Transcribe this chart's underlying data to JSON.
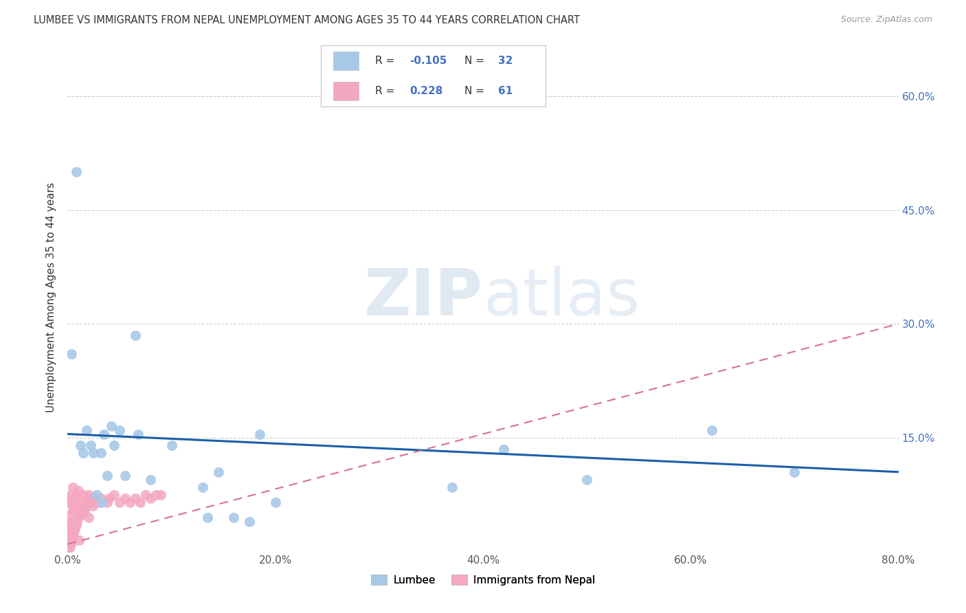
{
  "title": "LUMBEE VS IMMIGRANTS FROM NEPAL UNEMPLOYMENT AMONG AGES 35 TO 44 YEARS CORRELATION CHART",
  "source": "Source: ZipAtlas.com",
  "ylabel": "Unemployment Among Ages 35 to 44 years",
  "xlim": [
    0,
    0.8
  ],
  "ylim": [
    0,
    0.67
  ],
  "lumbee_R": -0.105,
  "lumbee_N": 32,
  "nepal_R": 0.228,
  "nepal_N": 61,
  "lumbee_color": "#a8c8e8",
  "nepal_color": "#f4a8c0",
  "lumbee_line_color": "#1a5fa8",
  "nepal_line_color": "#d87090",
  "background_color": "#ffffff",
  "lumbee_x": [
    0.004,
    0.008,
    0.012,
    0.015,
    0.018,
    0.022,
    0.025,
    0.028,
    0.032,
    0.033,
    0.035,
    0.038,
    0.042,
    0.045,
    0.05,
    0.055,
    0.065,
    0.068,
    0.08,
    0.1,
    0.13,
    0.135,
    0.145,
    0.16,
    0.175,
    0.185,
    0.2,
    0.37,
    0.42,
    0.5,
    0.62,
    0.7
  ],
  "lumbee_y": [
    0.26,
    0.5,
    0.14,
    0.13,
    0.16,
    0.14,
    0.13,
    0.075,
    0.13,
    0.065,
    0.155,
    0.1,
    0.165,
    0.14,
    0.16,
    0.1,
    0.285,
    0.155,
    0.095,
    0.14,
    0.085,
    0.045,
    0.105,
    0.045,
    0.04,
    0.155,
    0.065,
    0.085,
    0.135,
    0.095,
    0.16,
    0.105
  ],
  "nepal_x": [
    0.0,
    0.0,
    0.0,
    0.0,
    0.0,
    0.0,
    0.001,
    0.001,
    0.001,
    0.002,
    0.002,
    0.002,
    0.003,
    0.003,
    0.003,
    0.004,
    0.004,
    0.005,
    0.005,
    0.005,
    0.006,
    0.006,
    0.007,
    0.007,
    0.008,
    0.008,
    0.009,
    0.009,
    0.01,
    0.01,
    0.011,
    0.011,
    0.012,
    0.013,
    0.014,
    0.015,
    0.015,
    0.016,
    0.017,
    0.018,
    0.019,
    0.02,
    0.02,
    0.021,
    0.022,
    0.024,
    0.026,
    0.028,
    0.032,
    0.038,
    0.04,
    0.045,
    0.05,
    0.055,
    0.06,
    0.065,
    0.07,
    0.075,
    0.08,
    0.085,
    0.09
  ],
  "nepal_y": [
    0.005,
    0.01,
    0.02,
    0.03,
    0.04,
    0.07,
    0.005,
    0.03,
    0.065,
    0.005,
    0.025,
    0.065,
    0.01,
    0.04,
    0.075,
    0.015,
    0.05,
    0.02,
    0.055,
    0.085,
    0.025,
    0.06,
    0.03,
    0.065,
    0.035,
    0.07,
    0.04,
    0.075,
    0.045,
    0.08,
    0.015,
    0.05,
    0.06,
    0.055,
    0.06,
    0.05,
    0.075,
    0.055,
    0.065,
    0.06,
    0.07,
    0.045,
    0.075,
    0.065,
    0.07,
    0.06,
    0.07,
    0.065,
    0.07,
    0.065,
    0.07,
    0.075,
    0.065,
    0.07,
    0.065,
    0.07,
    0.065,
    0.075,
    0.07,
    0.075,
    0.075
  ],
  "lumbee_trend_x": [
    0.0,
    0.8
  ],
  "lumbee_trend_y": [
    0.155,
    0.105
  ],
  "nepal_trend_x": [
    0.0,
    0.8
  ],
  "nepal_trend_y": [
    0.01,
    0.3
  ]
}
